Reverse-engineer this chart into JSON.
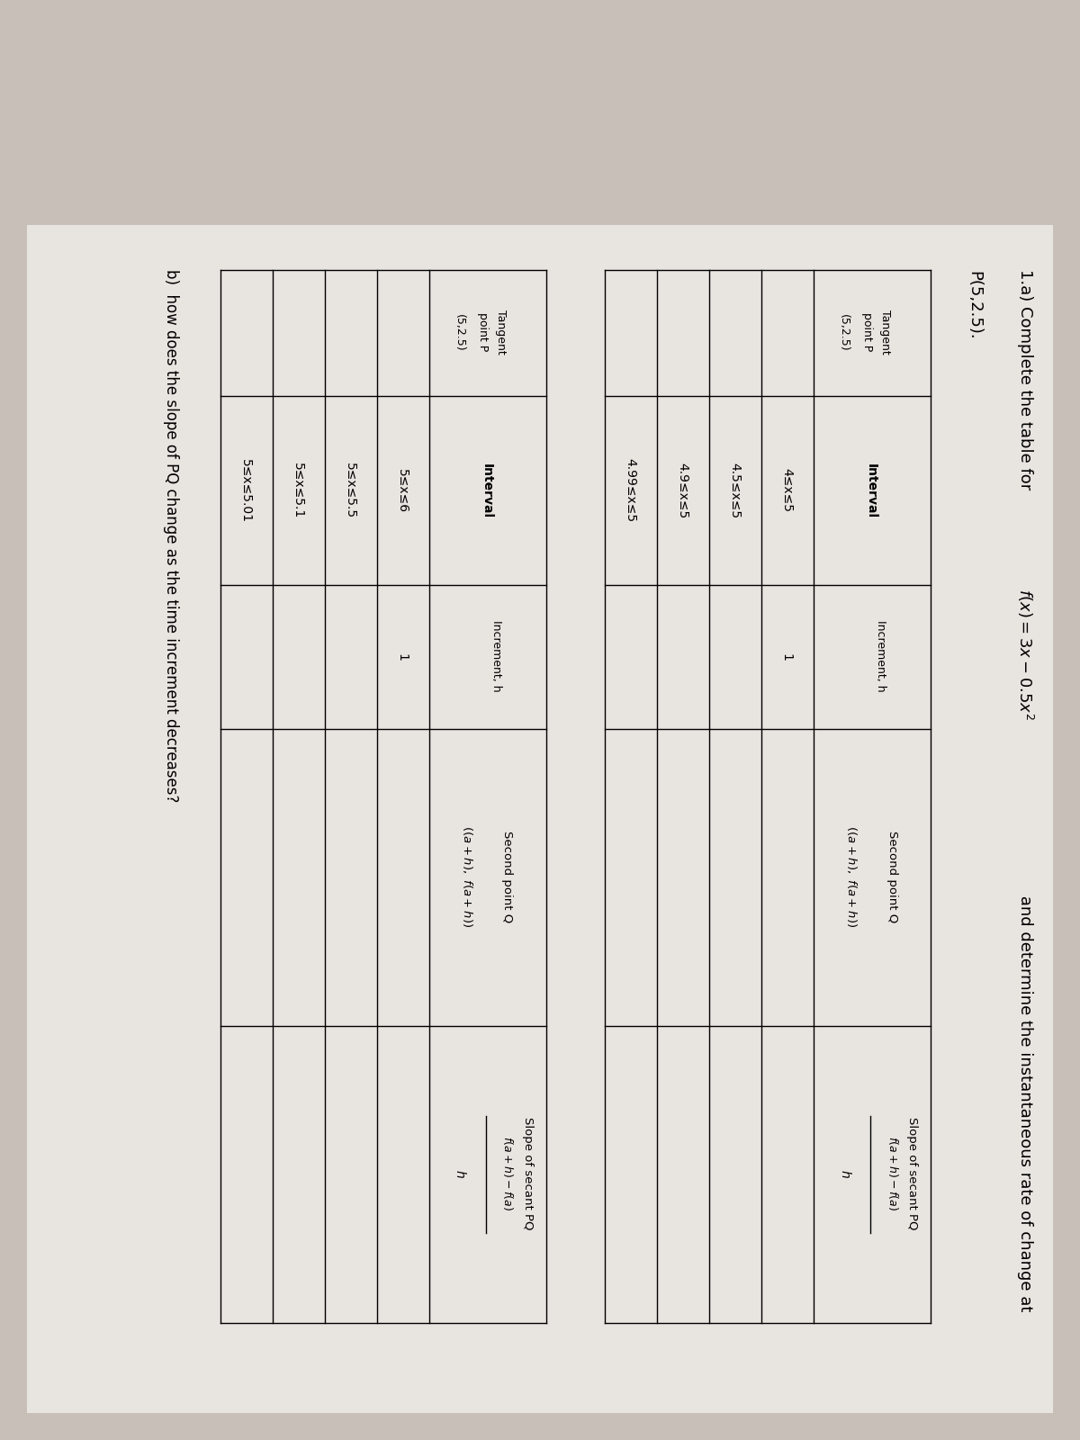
{
  "bg_color": "#c8c0b8",
  "paper_color": "#e8e4e0",
  "title_part1": "1.a) Complete the table for ",
  "title_fx": "f(x) = 3x − 0.5x²",
  "title_part2": " and determine the instantaneous rate of change at",
  "title_part3": "P(5,2.5).",
  "table1_rows": [
    [
      "4≤x≤5",
      "1"
    ],
    [
      "4.5≤x≤5",
      ""
    ],
    [
      "4.9≤x≤5",
      ""
    ],
    [
      "4.99≤x≤5",
      ""
    ]
  ],
  "table2_rows": [
    [
      "5≤x≤6",
      "1"
    ],
    [
      "5≤x≤5.5",
      ""
    ],
    [
      "5≤x≤5.1",
      ""
    ],
    [
      "5≤x≤5.01",
      ""
    ]
  ],
  "part_b": "b)  how does the slope of PQ change as the time increment decreases?"
}
